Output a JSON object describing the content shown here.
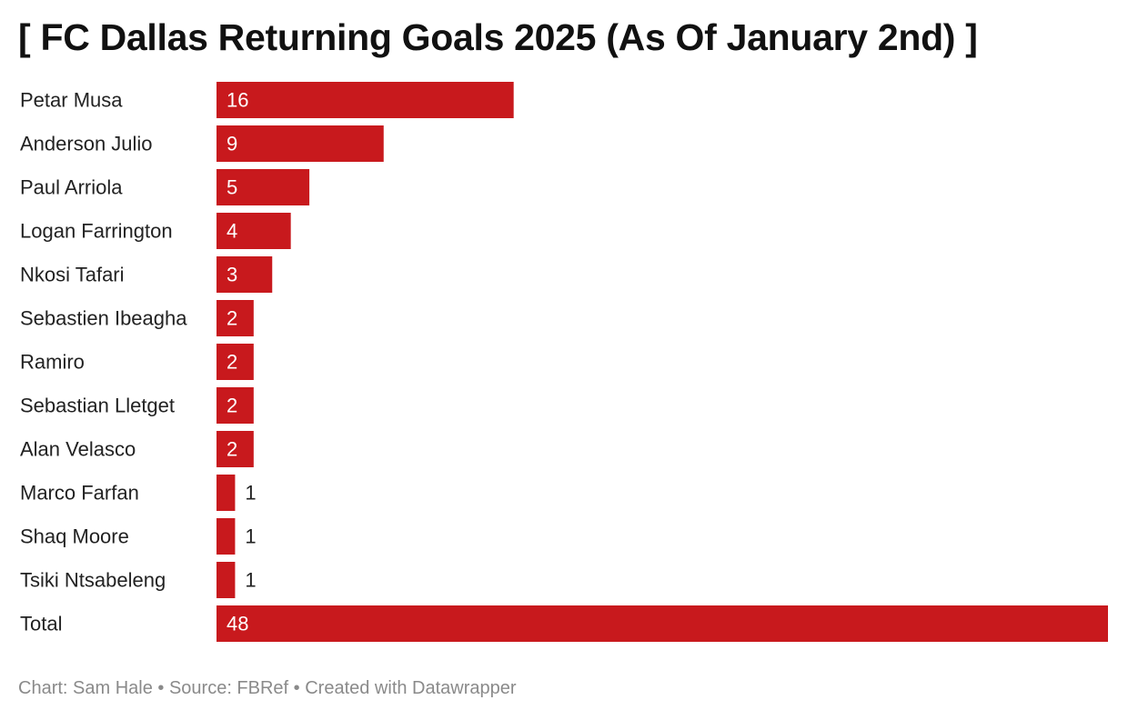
{
  "chart_data": {
    "type": "bar",
    "orientation": "horizontal",
    "title": "[ FC Dallas Returning Goals 2025 (As Of January 2nd) ]",
    "categories": [
      "Petar Musa",
      "Anderson Julio",
      "Paul Arriola",
      "Logan Farrington",
      "Nkosi Tafari",
      "Sebastien Ibeagha",
      "Ramiro",
      "Sebastian Lletget",
      "Alan Velasco",
      "Marco Farfan",
      "Shaq Moore",
      "Tsiki Ntsabeleng",
      "Total"
    ],
    "values": [
      16,
      9,
      5,
      4,
      3,
      2,
      2,
      2,
      2,
      1,
      1,
      1,
      48
    ],
    "xlim": [
      0,
      48
    ],
    "grid": false,
    "bar_color": "#c8191d",
    "inside_label_color": "#ffffff",
    "outside_label_color": "#222222"
  },
  "footer": {
    "credit": "Chart: Sam Hale • Source: FBRef • Created with Datawrapper"
  }
}
